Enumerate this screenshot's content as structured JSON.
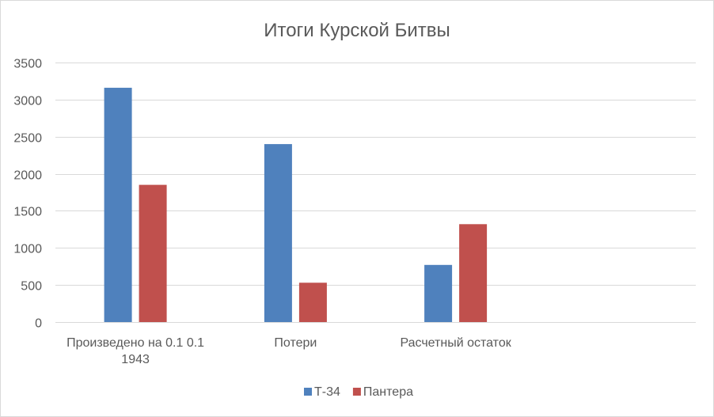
{
  "chart_data": {
    "type": "bar",
    "title": "Итоги Курской Битвы",
    "xlabel": "",
    "ylabel": "",
    "categories": [
      "Произведено на 0.1 0.1 1943",
      "Потери",
      "Расчетный остаток",
      ""
    ],
    "category_lines": [
      [
        "Произведено на 0.1 0.1",
        "1943"
      ],
      [
        "Потери"
      ],
      [
        "Расчетный остаток"
      ],
      [
        ""
      ]
    ],
    "series": [
      {
        "name": "Т-34",
        "color": "#4f81bd",
        "values": [
          3160,
          2400,
          770,
          null
        ]
      },
      {
        "name": "Пантера",
        "color": "#c0504d",
        "values": [
          1850,
          530,
          1320,
          null
        ]
      }
    ],
    "ylim": [
      0,
      3500
    ],
    "yticks": [
      0,
      500,
      1000,
      1500,
      2000,
      2500,
      3000,
      3500
    ],
    "grid": true,
    "legend": "bottom"
  }
}
